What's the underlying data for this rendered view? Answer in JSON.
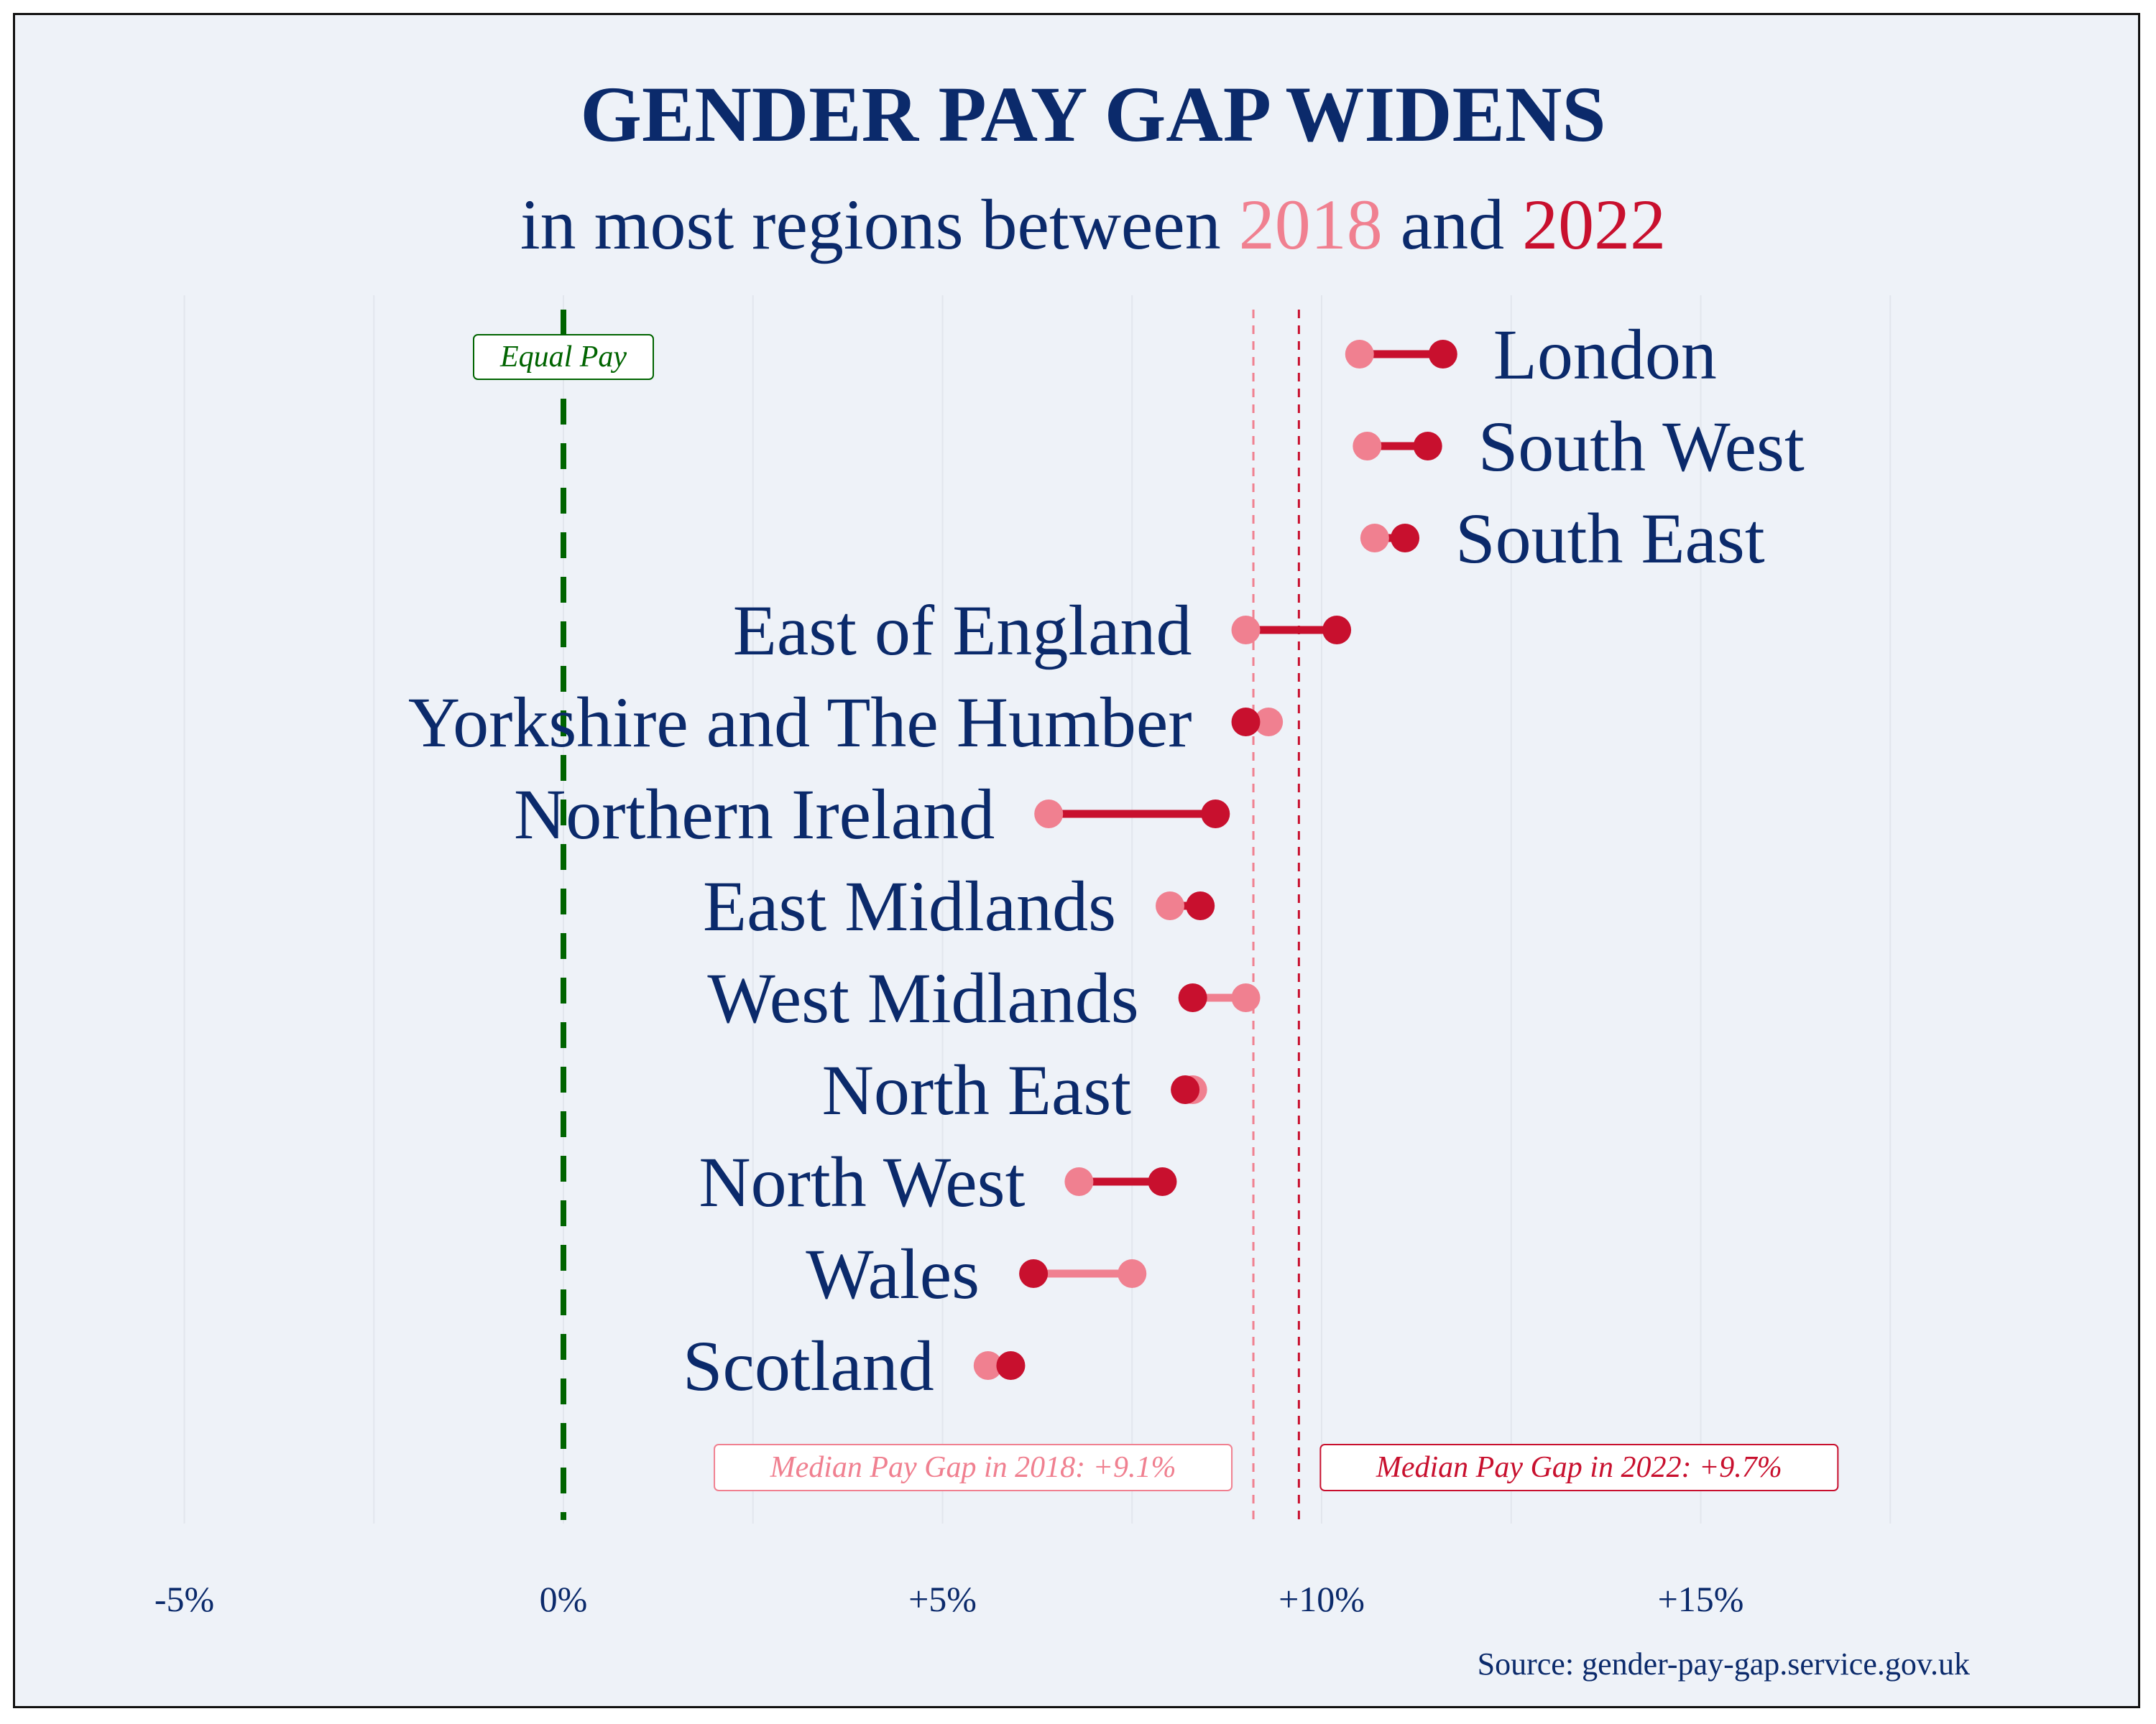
{
  "chart_data": {
    "type": "dumbbell",
    "title": "GENDER PAY GAP WIDENS",
    "subtitle_parts": [
      "in most regions between ",
      "2018",
      " and ",
      "2022"
    ],
    "x_ticks": [
      "-5%",
      "0%",
      "+5%",
      "+10%",
      "+15%"
    ],
    "x_tick_values": [
      -5,
      0,
      5,
      10,
      15
    ],
    "xlim": [
      -5.5,
      18
    ],
    "series_colors": {
      "2018": "#f08090",
      "2022": "#c8102e"
    },
    "equal_pay": {
      "value": 0,
      "label": "Equal Pay",
      "color": "#006400"
    },
    "medians": [
      {
        "year": "2018",
        "value": 9.1,
        "label": "Median Pay Gap in 2018: +9.1%"
      },
      {
        "year": "2022",
        "value": 9.7,
        "label": "Median Pay Gap in 2022: +9.7%"
      }
    ],
    "regions": [
      {
        "name": "London",
        "v2018": 10.5,
        "v2022": 11.6
      },
      {
        "name": "South West",
        "v2018": 10.6,
        "v2022": 11.4
      },
      {
        "name": "South East",
        "v2018": 10.7,
        "v2022": 11.1
      },
      {
        "name": "East of England",
        "v2018": 9.0,
        "v2022": 10.2
      },
      {
        "name": "Yorkshire and The Humber",
        "v2018": 9.3,
        "v2022": 9.0
      },
      {
        "name": "Northern Ireland",
        "v2018": 6.4,
        "v2022": 8.6
      },
      {
        "name": "East Midlands",
        "v2018": 8.0,
        "v2022": 8.4
      },
      {
        "name": "West Midlands",
        "v2018": 9.0,
        "v2022": 8.3
      },
      {
        "name": "North East",
        "v2018": 8.3,
        "v2022": 8.2
      },
      {
        "name": "North West",
        "v2018": 6.8,
        "v2022": 7.9
      },
      {
        "name": "Wales",
        "v2018": 7.5,
        "v2022": 6.2
      },
      {
        "name": "Scotland",
        "v2018": 5.6,
        "v2022": 5.9
      }
    ],
    "source": "Source: gender-pay-gap.service.gov.uk",
    "grid": true
  }
}
